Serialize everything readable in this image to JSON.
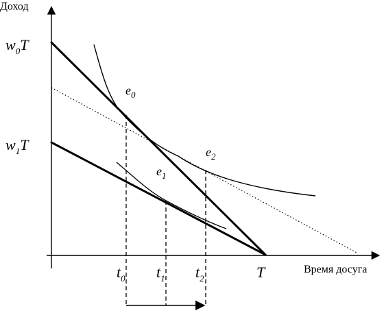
{
  "axes": {
    "y_label": "Доход",
    "x_label": "Время досуга"
  },
  "y_ticks": {
    "w0T": {
      "base": "w",
      "sub": "0",
      "tail": "T"
    },
    "w1T": {
      "base": "w",
      "sub": "1",
      "tail": "T"
    }
  },
  "x_ticks": {
    "t0": {
      "base": "t",
      "sub": "0"
    },
    "t1": {
      "base": "t",
      "sub": "1"
    },
    "t2": {
      "base": "t",
      "sub": "2"
    },
    "T": "T"
  },
  "points": {
    "e0": {
      "base": "e",
      "sub": "0"
    },
    "e1": {
      "base": "e",
      "sub": "1"
    },
    "e2": {
      "base": "e",
      "sub": "2"
    }
  }
}
